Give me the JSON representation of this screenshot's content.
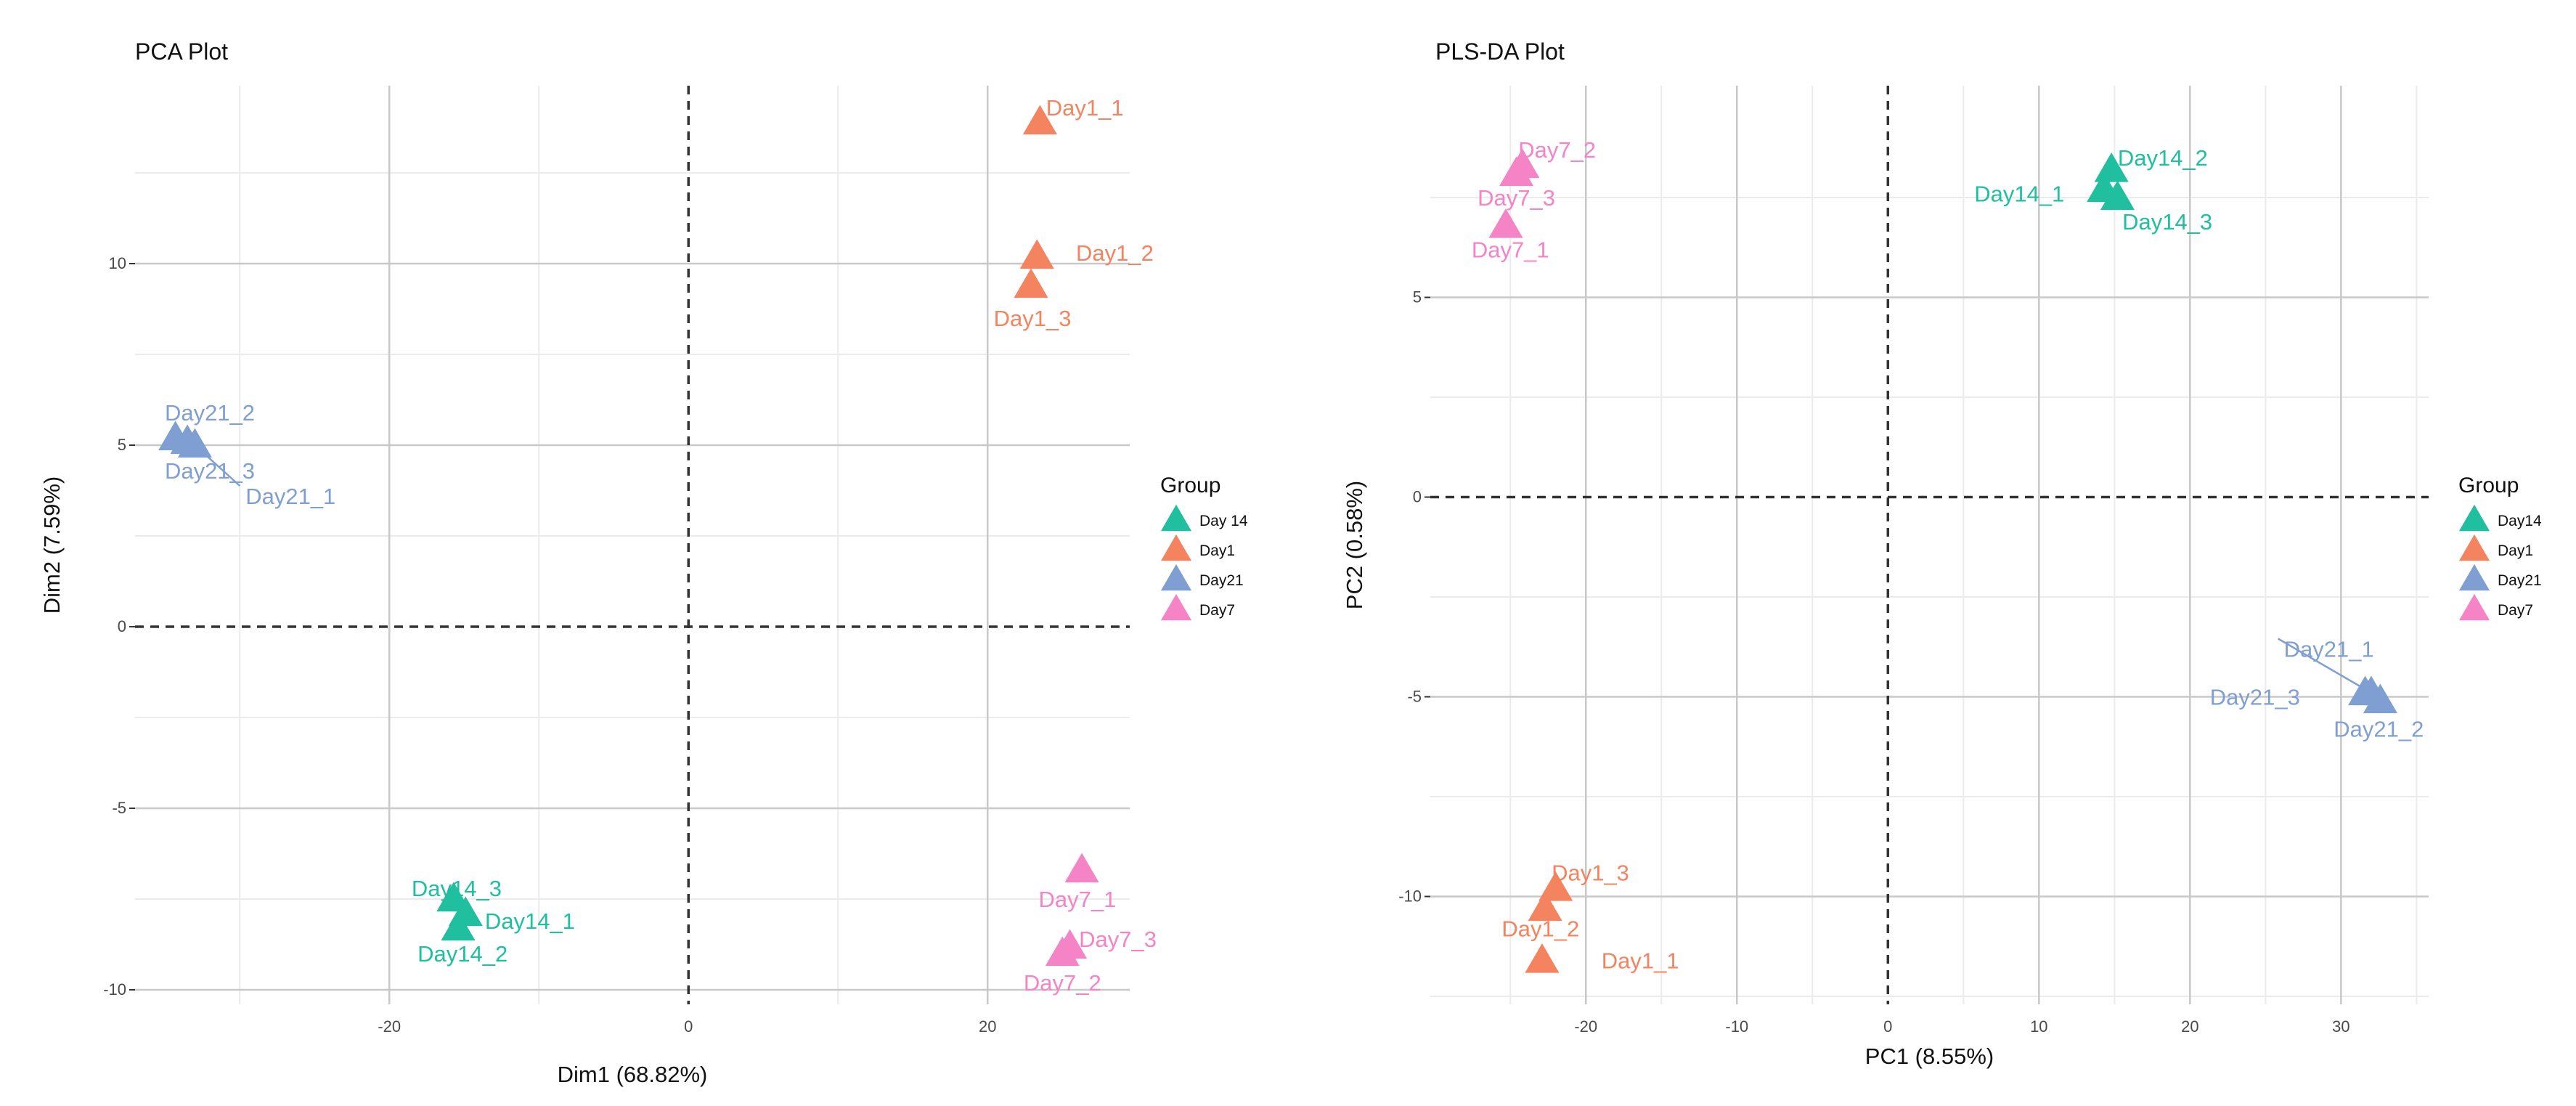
{
  "colors": {
    "Day14": "#1fbf9f",
    "Day1": "#f4845f",
    "Day21": "#7f9fd3",
    "Day7": "#f484c6"
  },
  "chart_data": [
    {
      "id": "pca",
      "type": "scatter",
      "title": "PCA Plot",
      "xlabel": "Dim1 (68.82%)",
      "ylabel": "Dim2 (7.59%)",
      "xlim": [
        -37,
        29.5
      ],
      "ylim": [
        -10.4,
        14.9
      ],
      "xticks": [
        -20,
        0,
        20
      ],
      "xticklabels": [
        "-20",
        "0",
        "20"
      ],
      "yticks": [
        -10,
        -5,
        0,
        5,
        10
      ],
      "yticklabels": [
        "-10",
        "-5",
        "0",
        "5",
        "10"
      ],
      "legend": {
        "title": "Group",
        "position": "right",
        "items": [
          {
            "label": "Day 14",
            "group": "Day14"
          },
          {
            "label": "Day1",
            "group": "Day1"
          },
          {
            "label": "Day21",
            "group": "Day21"
          },
          {
            "label": "Day7",
            "group": "Day7"
          }
        ]
      },
      "points": [
        {
          "label": "Day1_1",
          "group": "Day1",
          "x": 23.5,
          "y": 13.9,
          "lx": 26.5,
          "ly": 14.3
        },
        {
          "label": "Day1_2",
          "group": "Day1",
          "x": 23.3,
          "y": 10.2,
          "lx": 28.5,
          "ly": 10.3
        },
        {
          "label": "Day1_3",
          "group": "Day1",
          "x": 22.9,
          "y": 9.4,
          "lx": 23.0,
          "ly": 8.5
        },
        {
          "label": "Day21_2",
          "group": "Day21",
          "x": -34.3,
          "y": 5.2,
          "lx": -32.0,
          "ly": 5.9
        },
        {
          "label": "Day21_3",
          "group": "Day21",
          "x": -33.5,
          "y": 5.1,
          "lx": -32.0,
          "ly": 4.3
        },
        {
          "label": "Day21_1",
          "group": "Day21",
          "x": -33.0,
          "y": 5.0,
          "lx": -26.6,
          "ly": 3.6,
          "leader": true
        },
        {
          "label": "Day14_3",
          "group": "Day14",
          "x": -15.7,
          "y": -7.5,
          "lx": -15.5,
          "ly": -7.2
        },
        {
          "label": "Day14_1",
          "group": "Day14",
          "x": -14.9,
          "y": -7.9,
          "lx": -10.6,
          "ly": -8.1
        },
        {
          "label": "Day14_2",
          "group": "Day14",
          "x": -15.4,
          "y": -8.3,
          "lx": -15.1,
          "ly": -9.0
        },
        {
          "label": "Day7_1",
          "group": "Day7",
          "x": 26.3,
          "y": -6.7,
          "lx": 26.0,
          "ly": -7.5
        },
        {
          "label": "Day7_3",
          "group": "Day7",
          "x": 25.5,
          "y": -8.8,
          "lx": 28.7,
          "ly": -8.6
        },
        {
          "label": "Day7_2",
          "group": "Day7",
          "x": 25.0,
          "y": -9.0,
          "lx": 25.0,
          "ly": -9.8
        }
      ]
    },
    {
      "id": "plsda",
      "type": "scatter",
      "title": "PLS-DA Plot",
      "xlabel": "PC1 (8.55%)",
      "ylabel": "PC2 (0.58%)",
      "xlim": [
        -30.3,
        35.8
      ],
      "ylim": [
        -12.7,
        10.3
      ],
      "xticks": [
        -20,
        -10,
        0,
        10,
        20,
        30
      ],
      "xticklabels": [
        "-20",
        "-10",
        "0",
        "10",
        "20",
        "30"
      ],
      "yticks": [
        -10,
        -5,
        0,
        5
      ],
      "yticklabels": [
        "-10",
        "-5",
        "0",
        "5"
      ],
      "legend": {
        "title": "Group",
        "position": "right",
        "items": [
          {
            "label": "Day14",
            "group": "Day14"
          },
          {
            "label": "Day1",
            "group": "Day1"
          },
          {
            "label": "Day21",
            "group": "Day21"
          },
          {
            "label": "Day7",
            "group": "Day7"
          }
        ]
      },
      "points": [
        {
          "label": "Day7_2",
          "group": "Day7",
          "x": -24.2,
          "y": 8.3,
          "lx": -21.9,
          "ly": 8.7
        },
        {
          "label": "Day7_3",
          "group": "Day7",
          "x": -24.6,
          "y": 8.1,
          "lx": -24.6,
          "ly": 7.5
        },
        {
          "label": "Day7_1",
          "group": "Day7",
          "x": -25.3,
          "y": 6.8,
          "lx": -25.0,
          "ly": 6.2
        },
        {
          "label": "Day14_2",
          "group": "Day14",
          "x": 14.8,
          "y": 8.2,
          "lx": 18.2,
          "ly": 8.5
        },
        {
          "label": "Day14_1",
          "group": "Day14",
          "x": 14.3,
          "y": 7.7,
          "lx": 8.7,
          "ly": 7.6
        },
        {
          "label": "Day14_3",
          "group": "Day14",
          "x": 15.2,
          "y": 7.5,
          "lx": 18.5,
          "ly": 6.9
        },
        {
          "label": "Day21_1",
          "group": "Day21",
          "x": 32.0,
          "y": -4.9,
          "lx": 29.2,
          "ly": -3.8,
          "leader": true
        },
        {
          "label": "Day21_3",
          "group": "Day21",
          "x": 31.6,
          "y": -4.9,
          "lx": 24.3,
          "ly": -5.0
        },
        {
          "label": "Day21_2",
          "group": "Day21",
          "x": 32.6,
          "y": -5.1,
          "lx": 32.5,
          "ly": -5.8
        },
        {
          "label": "Day1_3",
          "group": "Day1",
          "x": -22.0,
          "y": -9.8,
          "lx": -19.7,
          "ly": -9.4
        },
        {
          "label": "Day1_2",
          "group": "Day1",
          "x": -22.7,
          "y": -10.3,
          "lx": -23.0,
          "ly": -10.8
        },
        {
          "label": "Day1_1",
          "group": "Day1",
          "x": -22.9,
          "y": -11.6,
          "lx": -16.4,
          "ly": -11.6
        }
      ]
    }
  ]
}
